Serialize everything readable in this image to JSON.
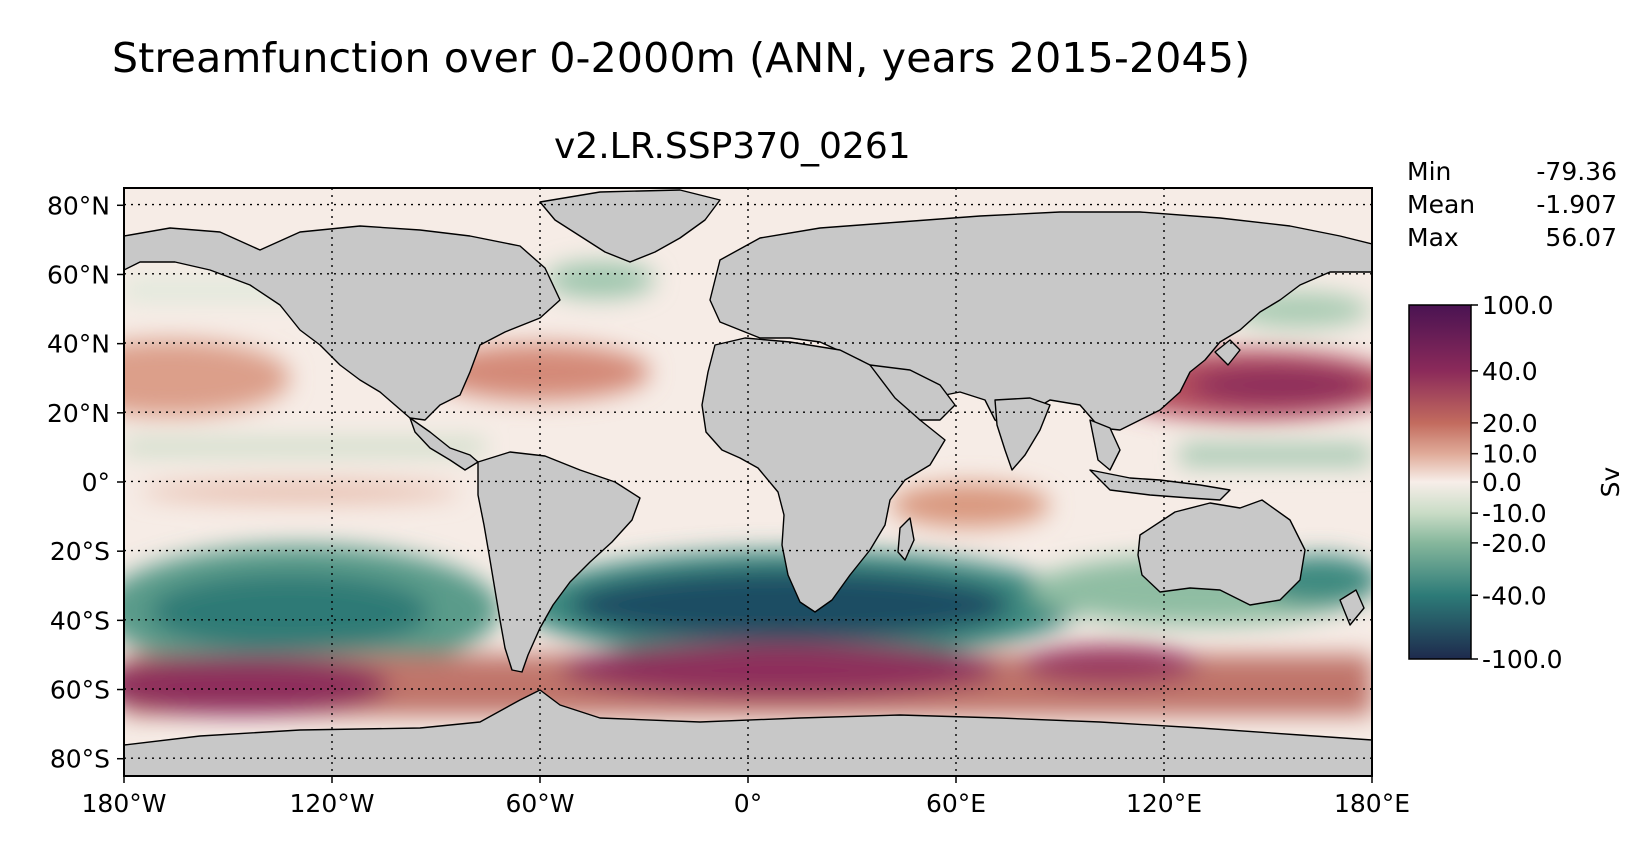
{
  "title": "Streamfunction over 0-2000m (ANN, years 2015-2045)",
  "subtitle": "v2.LR.SSP370_0261",
  "stats": [
    {
      "label": "Min",
      "value": "-79.36"
    },
    {
      "label": "Mean",
      "value": "-1.907"
    },
    {
      "label": "Max",
      "value": "56.07"
    }
  ],
  "map": {
    "x_ticks": [
      "180°W",
      "120°W",
      "60°W",
      "0°",
      "60°E",
      "120°E",
      "180°E"
    ],
    "y_ticks": [
      "80°N",
      "60°N",
      "40°N",
      "20°N",
      "0°",
      "20°S",
      "40°S",
      "60°S",
      "80°S"
    ],
    "x_tick_values": [
      -180,
      -120,
      -60,
      0,
      60,
      120,
      180
    ],
    "y_tick_values": [
      80,
      60,
      40,
      20,
      0,
      -20,
      -40,
      -60,
      -80
    ],
    "lon_range": [
      -180,
      180
    ],
    "lat_range": [
      -85,
      85
    ],
    "gridlines": "dotted",
    "land_color": "#c8c8c8"
  },
  "colorbar": {
    "label": "Sv",
    "ticks": [
      "100.0",
      "40.0",
      "20.0",
      "10.0",
      "0.0",
      "-10.0",
      "-20.0",
      "-40.0",
      "-100.0"
    ],
    "tick_fractions": [
      0,
      0.186,
      0.333,
      0.42,
      0.5,
      0.588,
      0.672,
      0.82,
      1
    ],
    "colors": [
      "#4a1352",
      "#8b2a5a",
      "#c26b5e",
      "#e0ab99",
      "#f7eee9",
      "#c9dcc6",
      "#86b79c",
      "#2d7b78",
      "#1e2a4d"
    ]
  }
}
